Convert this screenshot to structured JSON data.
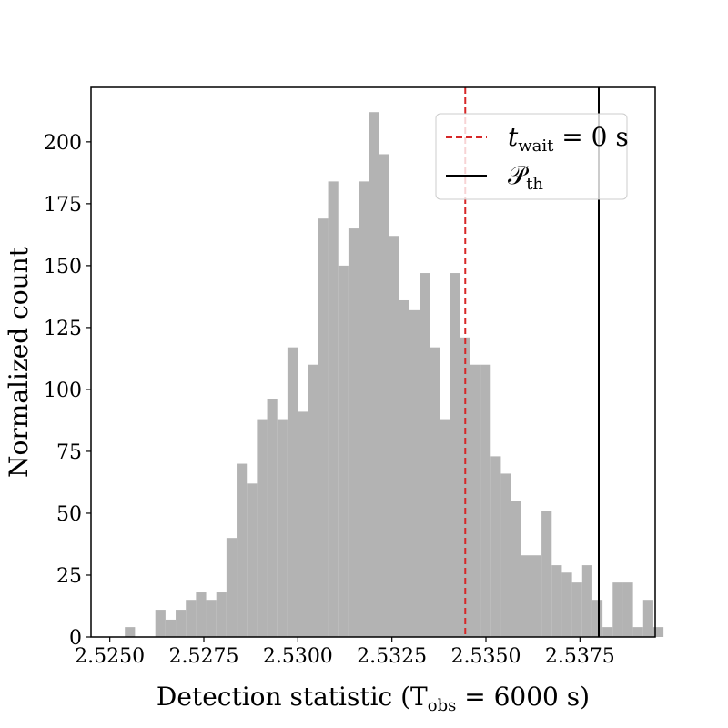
{
  "chart_data": {
    "type": "bar",
    "xlabel": "Detection statistic (T",
    "xlabel_sub": "obs",
    "xlabel_tail": " = 6000 s)",
    "ylabel": "Normalized count",
    "xlim": [
      2.5245,
      2.5395
    ],
    "ylim": [
      0,
      222
    ],
    "xticks": [
      2.525,
      2.5275,
      2.53,
      2.5325,
      2.535,
      2.5375
    ],
    "xtick_labels": [
      "2.5250",
      "2.5275",
      "2.5300",
      "2.5325",
      "2.5350",
      "2.5375"
    ],
    "yticks": [
      0,
      25,
      50,
      75,
      100,
      125,
      150,
      175,
      200
    ],
    "ytick_labels": [
      "0",
      "25",
      "50",
      "75",
      "100",
      "125",
      "150",
      "175",
      "200"
    ],
    "bins": {
      "start": 2.5254,
      "width": 0.0002702,
      "values": [
        4,
        0,
        0,
        11,
        7,
        11,
        15,
        18,
        15,
        18,
        40,
        70,
        62,
        88,
        96,
        88,
        117,
        91,
        110,
        169,
        184,
        150,
        165,
        184,
        212,
        195,
        162,
        136,
        132,
        147,
        117,
        88,
        147,
        121,
        110,
        110,
        73,
        66,
        55,
        33,
        33,
        51,
        29,
        26,
        22,
        29,
        15,
        4,
        22,
        22,
        4,
        15,
        4
      ]
    },
    "bar_color": "#b3b3b3",
    "vlines": [
      {
        "x": 2.53445,
        "color": "#d62728",
        "style": "dashed"
      },
      {
        "x": 2.538,
        "color": "#000000",
        "style": "solid"
      }
    ],
    "legend": {
      "position": "top-right",
      "entries": [
        {
          "label": "t",
          "sub": "wait",
          "tail": " = 0 s",
          "color": "#d62728",
          "style": "dashed"
        },
        {
          "label": "𝒫",
          "sub": "th",
          "tail": "",
          "color": "#000000",
          "style": "solid"
        }
      ]
    }
  }
}
